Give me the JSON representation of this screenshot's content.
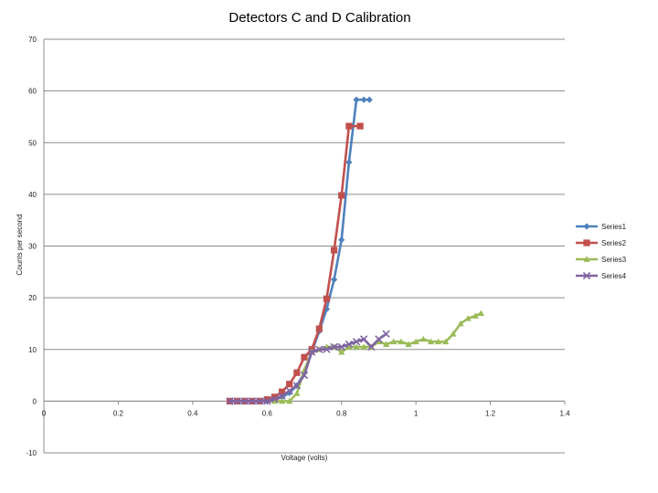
{
  "chart_data": {
    "type": "scatter",
    "title": "Detectors C and D Calibration",
    "xlabel": "Voltage (volts)",
    "ylabel": "Counts per second",
    "xlim": [
      0,
      1.4
    ],
    "ylim": [
      -10,
      70
    ],
    "x_ticks": [
      "0",
      "0.2",
      "0.4",
      "0.6",
      "0.8",
      "1",
      "1.2",
      "1.4"
    ],
    "y_ticks": [
      "-10",
      "0",
      "10",
      "20",
      "30",
      "40",
      "50",
      "60",
      "70"
    ],
    "grid": "horizontal",
    "legend_position": "right",
    "series": [
      {
        "name": "Series1",
        "color": "#4F81BD",
        "marker": "diamond",
        "x": [
          0.5,
          0.52,
          0.54,
          0.56,
          0.58,
          0.6,
          0.62,
          0.64,
          0.66,
          0.68,
          0.7,
          0.72,
          0.74,
          0.76,
          0.78,
          0.8,
          0.82,
          0.84,
          0.86,
          0.875
        ],
        "y": [
          0,
          0,
          0,
          0,
          0,
          0,
          0.3,
          0.8,
          1.6,
          3.0,
          5.5,
          9.5,
          13.5,
          17.8,
          23.5,
          31.2,
          46.2,
          58.3,
          58.3,
          58.3
        ]
      },
      {
        "name": "Series2",
        "color": "#C0504D",
        "marker": "square",
        "x": [
          0.5,
          0.52,
          0.54,
          0.56,
          0.58,
          0.6,
          0.62,
          0.64,
          0.66,
          0.68,
          0.7,
          0.72,
          0.74,
          0.76,
          0.78,
          0.8,
          0.82,
          0.85
        ],
        "y": [
          0,
          0,
          0,
          0,
          0,
          0.3,
          0.8,
          1.8,
          3.3,
          5.5,
          8.5,
          10.0,
          14.0,
          19.8,
          29.2,
          39.8,
          53.2,
          53.2
        ]
      },
      {
        "name": "Series3",
        "color": "#9BBB59",
        "marker": "triangle",
        "x": [
          0.62,
          0.64,
          0.66,
          0.68,
          0.7,
          0.72,
          0.74,
          0.76,
          0.78,
          0.8,
          0.82,
          0.84,
          0.86,
          0.88,
          0.9,
          0.92,
          0.94,
          0.96,
          0.98,
          1.0,
          1.02,
          1.04,
          1.06,
          1.08,
          1.1,
          1.12,
          1.14,
          1.16,
          1.175
        ],
        "y": [
          0,
          0,
          0,
          1.5,
          6.0,
          9.5,
          10.0,
          10.5,
          10.5,
          9.5,
          10.5,
          10.5,
          10.5,
          10.5,
          11.5,
          11.0,
          11.5,
          11.5,
          11.0,
          11.5,
          12.0,
          11.5,
          11.5,
          11.5,
          13.0,
          15.0,
          16.0,
          16.5,
          17.0
        ]
      },
      {
        "name": "Series4",
        "color": "#8064A2",
        "marker": "x",
        "x": [
          0.5,
          0.52,
          0.54,
          0.56,
          0.58,
          0.6,
          0.62,
          0.64,
          0.66,
          0.68,
          0.7,
          0.72,
          0.74,
          0.76,
          0.78,
          0.8,
          0.82,
          0.84,
          0.86,
          0.88,
          0.9,
          0.92
        ],
        "y": [
          0,
          0,
          0,
          0,
          0,
          0,
          0.4,
          1.0,
          2.0,
          3.0,
          5.0,
          9.5,
          10.0,
          10.0,
          10.5,
          10.5,
          11.0,
          11.5,
          12.0,
          10.5,
          12.0,
          13.0
        ]
      }
    ]
  }
}
